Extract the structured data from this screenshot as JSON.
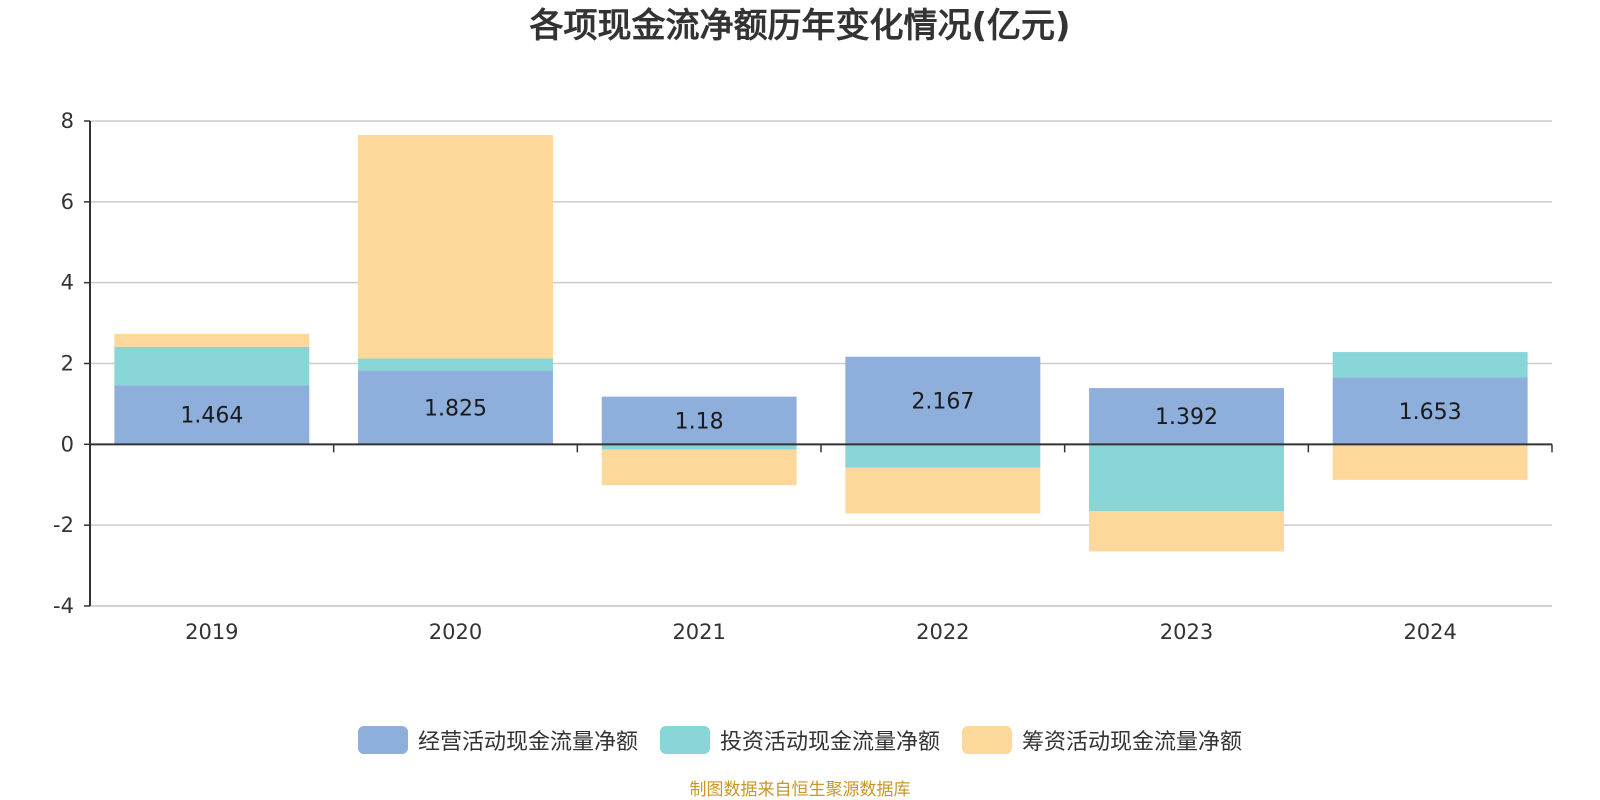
{
  "chart_data": {
    "type": "bar",
    "stacked": true,
    "title": "各项现金流净额历年变化情况(亿元)",
    "xlabel": "",
    "ylabel": "",
    "categories": [
      "2019",
      "2020",
      "2021",
      "2022",
      "2023",
      "2024"
    ],
    "ylim": [
      -4,
      8
    ],
    "yticks": [
      -4,
      -2,
      0,
      2,
      4,
      6,
      8
    ],
    "grid": true,
    "legend_position": "bottom",
    "series": [
      {
        "name": "经营活动现金流量净额",
        "color": "#8eaedb",
        "values": [
          1.464,
          1.825,
          1.18,
          2.167,
          1.392,
          1.653
        ],
        "data_labels": [
          "1.464",
          "1.825",
          "1.18",
          "2.167",
          "1.392",
          "1.653"
        ]
      },
      {
        "name": "投资活动现金流量净额",
        "color": "#88d6d8",
        "values": [
          0.95,
          0.3,
          -0.13,
          -0.58,
          -1.65,
          0.63
        ],
        "data_labels": []
      },
      {
        "name": "筹资活动现金流量净额",
        "color": "#fdd89a",
        "values": [
          0.32,
          5.53,
          -0.88,
          -1.13,
          -1.0,
          -0.88
        ],
        "data_labels": []
      }
    ]
  },
  "source_note": "制图数据来自恒生聚源数据库",
  "colors": {
    "axis": "#333333",
    "grid": "#cccccc",
    "source_note": "#c8962a"
  }
}
